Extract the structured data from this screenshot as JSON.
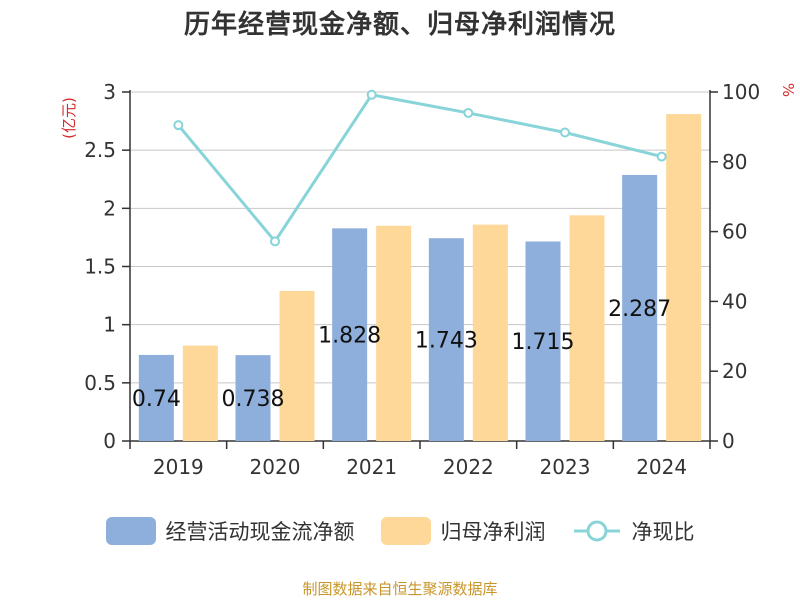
{
  "title": "历年经营现金净额、归母净利润情况",
  "source": "制图数据来自恒生聚源数据库",
  "chart_data": {
    "type": "bar",
    "title": "历年经营现金净额、归母净利润情况",
    "categories": [
      "2019",
      "2020",
      "2021",
      "2022",
      "2023",
      "2024"
    ],
    "series": [
      {
        "name": "经营活动现金流净额",
        "type": "bar",
        "axis": "left",
        "color": "#8eaedb",
        "values": [
          0.74,
          0.738,
          1.828,
          1.743,
          1.715,
          2.287
        ],
        "labels": [
          "0.74",
          "0.738",
          "1.828",
          "1.743",
          "1.715",
          "2.287"
        ]
      },
      {
        "name": "归母净利润",
        "type": "bar",
        "axis": "left",
        "color": "#fdd898",
        "values": [
          0.82,
          1.29,
          1.85,
          1.86,
          1.94,
          2.81
        ]
      },
      {
        "name": "净现比",
        "type": "line",
        "axis": "right",
        "color": "#88d4d8",
        "values": [
          90.5,
          57.2,
          99.2,
          94.0,
          88.4,
          81.5
        ]
      }
    ],
    "left_axis": {
      "unit": "(亿元)",
      "ylim": [
        0,
        3
      ],
      "ticks": [
        "0",
        "0.5",
        "1",
        "1.5",
        "2",
        "2.5",
        "3"
      ]
    },
    "right_axis": {
      "unit": "%",
      "ylim": [
        0,
        100
      ],
      "ticks": [
        "0",
        "20",
        "40",
        "60",
        "80",
        "100"
      ]
    },
    "grid": true,
    "legend_position": "bottom"
  }
}
